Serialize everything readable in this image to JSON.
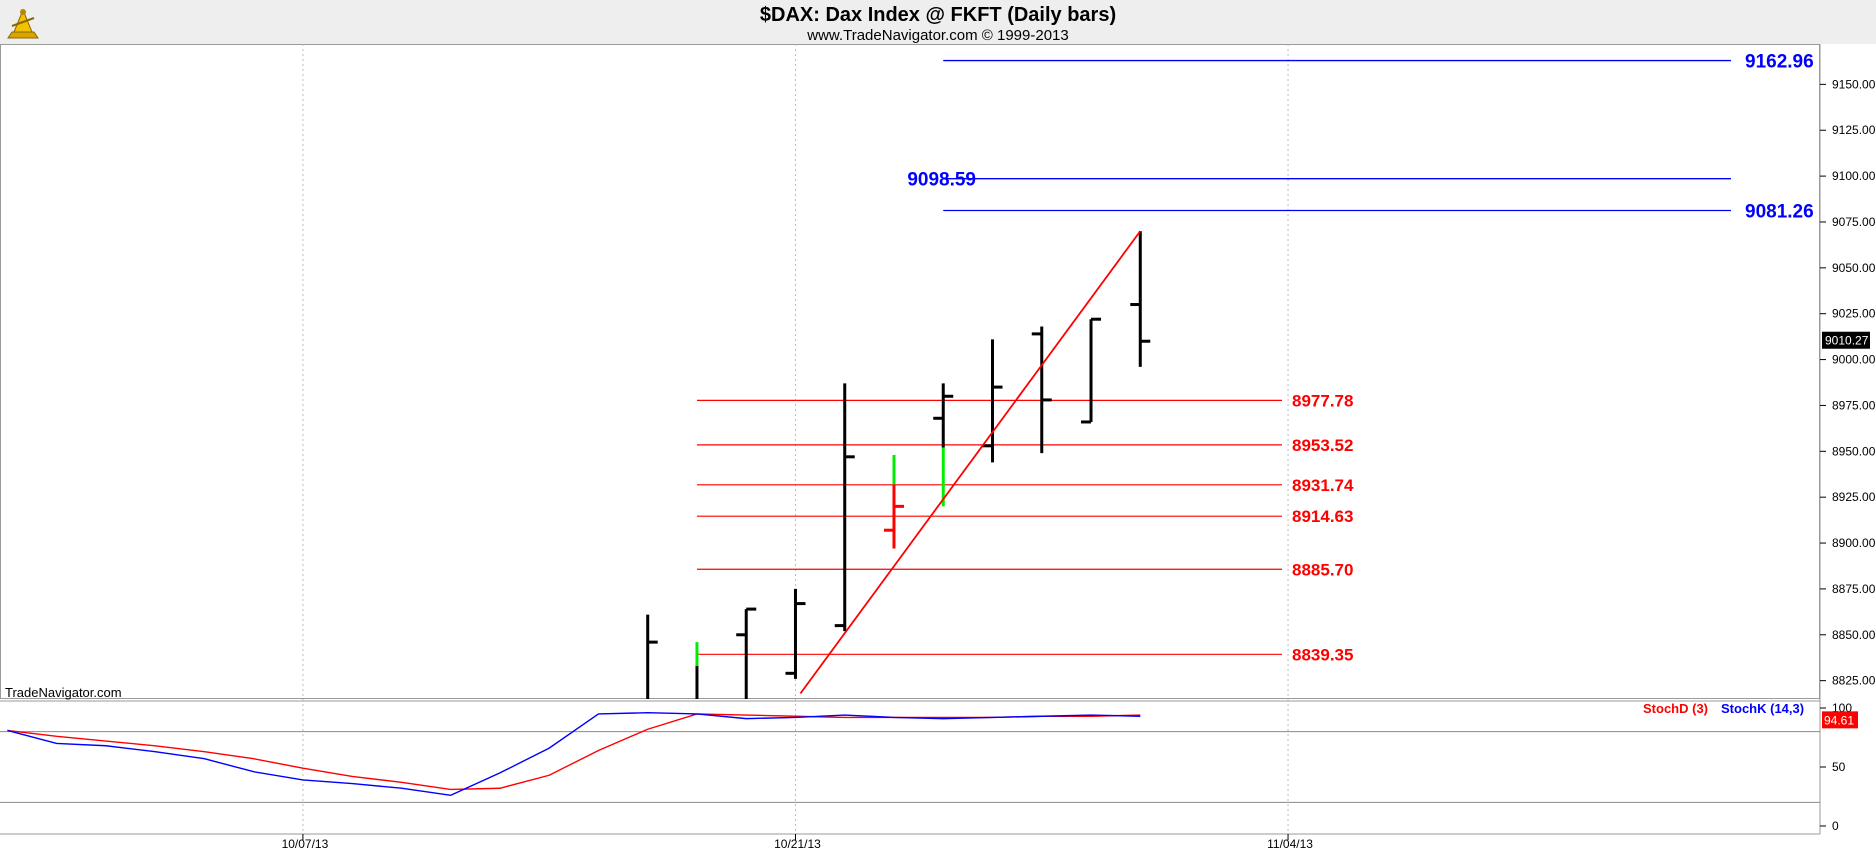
{
  "header": {
    "title": "$DAX:  Dax Index @ FKFT  (Daily bars)",
    "subtitle": "www.TradeNavigator.com © 1999-2013",
    "watermark": "TradeNavigator.com",
    "logo_icon": "trade-navigator-logo-icon"
  },
  "colors": {
    "background": "#ffffff",
    "header_bg": "#eeeeee",
    "bar": "#000000",
    "bar_up": "#00ee00",
    "bar_down": "#ff0000",
    "blue_level": "#0000ff",
    "red_level": "#ff0000",
    "trendline": "#ff0000",
    "stoch_k": "#0000ff",
    "stoch_d": "#ff0000",
    "grid": "#bbbbbb"
  },
  "chart_data": {
    "type": "ohlc-bar",
    "price_axis": {
      "ylim": [
        8815,
        9172
      ],
      "ticks": [
        "8825.00",
        "8850.00",
        "8875.00",
        "8900.00",
        "8925.00",
        "8950.00",
        "8975.00",
        "9000.00",
        "9025.00",
        "9050.00",
        "9075.00",
        "9100.00",
        "9125.00",
        "9150.00"
      ],
      "last_price": "9010.27"
    },
    "x_axis": {
      "date_labels": [
        {
          "label": "10/07/13",
          "slot": 0
        },
        {
          "label": "10/21/13",
          "slot": 10
        },
        {
          "label": "11/04/13",
          "slot": 20
        }
      ],
      "slot_range": [
        -6.15,
        30.8
      ]
    },
    "bars": [
      {
        "slot": 7,
        "open": 8815,
        "high": 8861,
        "low": 8815,
        "close": 8846,
        "color": "black"
      },
      {
        "slot": 8,
        "open": 8815,
        "high": 8846,
        "low": 8815,
        "close": 8815,
        "color": "mixed"
      },
      {
        "slot": 9,
        "open": 8850,
        "high": 8864,
        "low": 8815,
        "close": 8864,
        "color": "black"
      },
      {
        "slot": 10,
        "open": 8829,
        "high": 8875,
        "low": 8826,
        "close": 8867,
        "color": "black"
      },
      {
        "slot": 11,
        "open": 8855,
        "high": 8987,
        "low": 8852,
        "close": 8947,
        "color": "black"
      },
      {
        "slot": 12,
        "open": 8907,
        "high": 8948,
        "low": 8897,
        "close": 8920,
        "color": "mixed-down"
      },
      {
        "slot": 13,
        "open": 8968,
        "high": 8987,
        "low": 8920,
        "close": 8980,
        "color": "mixed-up"
      },
      {
        "slot": 14,
        "open": 8953,
        "high": 9011,
        "low": 8944,
        "close": 8985,
        "color": "black"
      },
      {
        "slot": 15,
        "open": 9014,
        "high": 9018,
        "low": 8949,
        "close": 8978,
        "color": "black"
      },
      {
        "slot": 16,
        "open": 8966,
        "high": 9022,
        "low": 8966,
        "close": 9022,
        "color": "black"
      },
      {
        "slot": 17,
        "open": 9030,
        "high": 9070,
        "low": 8996,
        "close": 9010,
        "color": "black"
      }
    ],
    "blue_levels": [
      {
        "label": "9162.96",
        "value": 9162.96
      },
      {
        "label": "9098.59",
        "value": 9098.59
      },
      {
        "label": "9081.26",
        "value": 9081.26
      }
    ],
    "red_levels": [
      {
        "label": "8977.78",
        "value": 8977.78
      },
      {
        "label": "8953.52",
        "value": 8953.52
      },
      {
        "label": "8931.74",
        "value": 8931.74
      },
      {
        "label": "8914.63",
        "value": 8914.63
      },
      {
        "label": "8885.70",
        "value": 8885.7
      },
      {
        "label": "8839.35",
        "value": 8839.35
      }
    ],
    "trendline": {
      "from": {
        "slot": 10.1,
        "value": 8818
      },
      "to": {
        "slot": 17.0,
        "value": 9070
      }
    },
    "stochastic": {
      "ylim": [
        0,
        100
      ],
      "ticks": [
        "0",
        "50",
        "100"
      ],
      "reference_lines": [
        20,
        80
      ],
      "last_value": "94.61",
      "legend": [
        {
          "name": "StochD (3)",
          "color": "#ff0000"
        },
        {
          "name": "StochK (14,3)",
          "color": "#0000ff"
        }
      ],
      "slots": [
        -6,
        -5,
        -4,
        -3,
        -2,
        -1,
        0,
        1,
        2,
        3,
        4,
        5,
        6,
        7,
        8,
        9,
        10,
        11,
        12,
        13,
        14,
        15,
        16,
        17
      ],
      "k": [
        81,
        70,
        68,
        63,
        57,
        46,
        39,
        36,
        32,
        26,
        45,
        66,
        95,
        96,
        95,
        91,
        92,
        94,
        92,
        91,
        92,
        93,
        94,
        93
      ],
      "d": [
        81,
        76,
        72,
        68,
        63,
        57,
        49,
        42,
        37,
        31,
        32,
        43,
        64,
        82,
        95,
        94,
        93,
        92,
        92,
        92,
        92,
        93,
        93,
        94
      ]
    }
  }
}
